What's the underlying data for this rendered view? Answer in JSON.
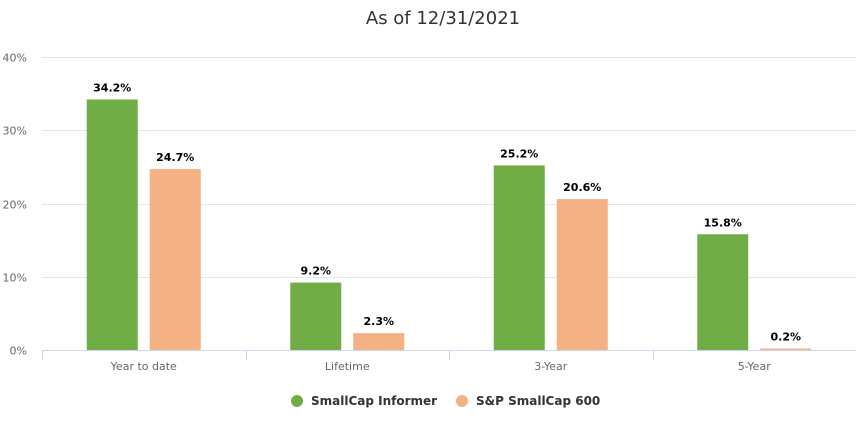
{
  "chart_data": {
    "type": "bar",
    "title": "As of 12/31/2021",
    "categories": [
      "Year to date",
      "Lifetime",
      "3-Year",
      "5-Year"
    ],
    "series": [
      {
        "name": "SmallCap Informer",
        "values": [
          34.2,
          9.2,
          25.2,
          15.8
        ],
        "labels": [
          "34.2%",
          "9.2%",
          "25.2%",
          "15.8%"
        ],
        "color": "#70ad47"
      },
      {
        "name": "S&P SmallCap 600",
        "values": [
          24.7,
          2.3,
          20.6,
          0.2
        ],
        "labels": [
          "24.7%",
          "2.3%",
          "20.6%",
          "0.2%"
        ],
        "color": "#f4b183"
      }
    ],
    "ylim": [
      0,
      40
    ],
    "yticks": [
      0,
      10,
      20,
      30,
      40
    ],
    "ytick_labels": [
      "0%",
      "10%",
      "20%",
      "30%",
      "40%"
    ],
    "grid": true,
    "legend_position": "bottom",
    "colors": {
      "grid": "#e6e6e6",
      "axis": "#ccd6eb",
      "text": "#666666"
    }
  }
}
